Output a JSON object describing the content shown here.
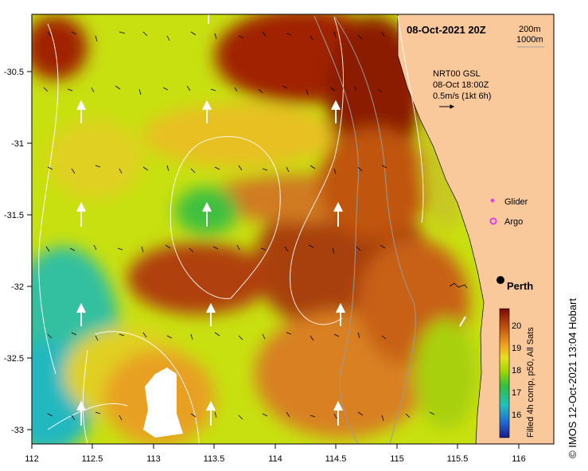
{
  "title": "08-Oct-2021 20Z",
  "depth_contours": [
    "200m",
    "1000m"
  ],
  "current_info": {
    "lines": [
      "NRT00 GSL",
      "08-Oct 18:00Z",
      "0.5m/s (1kt 6h)"
    ]
  },
  "legend": {
    "glider_label": "Glider",
    "argo_label": "Argo",
    "glider_color": "#e040e0",
    "argo_color": "#e040e0"
  },
  "city": "Perth",
  "colorbar": {
    "label": "Filled 4h comp, p50, All Sats",
    "ticks": [
      "16",
      "17",
      "18",
      "19",
      "20"
    ]
  },
  "credit": "© IMOS 12-Oct-2021 13:04 Hobart",
  "axes": {
    "x_ticks": [
      "112",
      "112.5",
      "113",
      "113.5",
      "114",
      "114.5",
      "115",
      "115.5",
      "116"
    ],
    "y_ticks": [
      "-30.5",
      "-31",
      "-31.5",
      "-32",
      "-32.5",
      "-33"
    ]
  },
  "colors": {
    "land": "#f9c89b",
    "warm": "#8b1a00",
    "mid": "#d07a20",
    "cool": "#a6d600",
    "cold": "#20c0c0"
  }
}
